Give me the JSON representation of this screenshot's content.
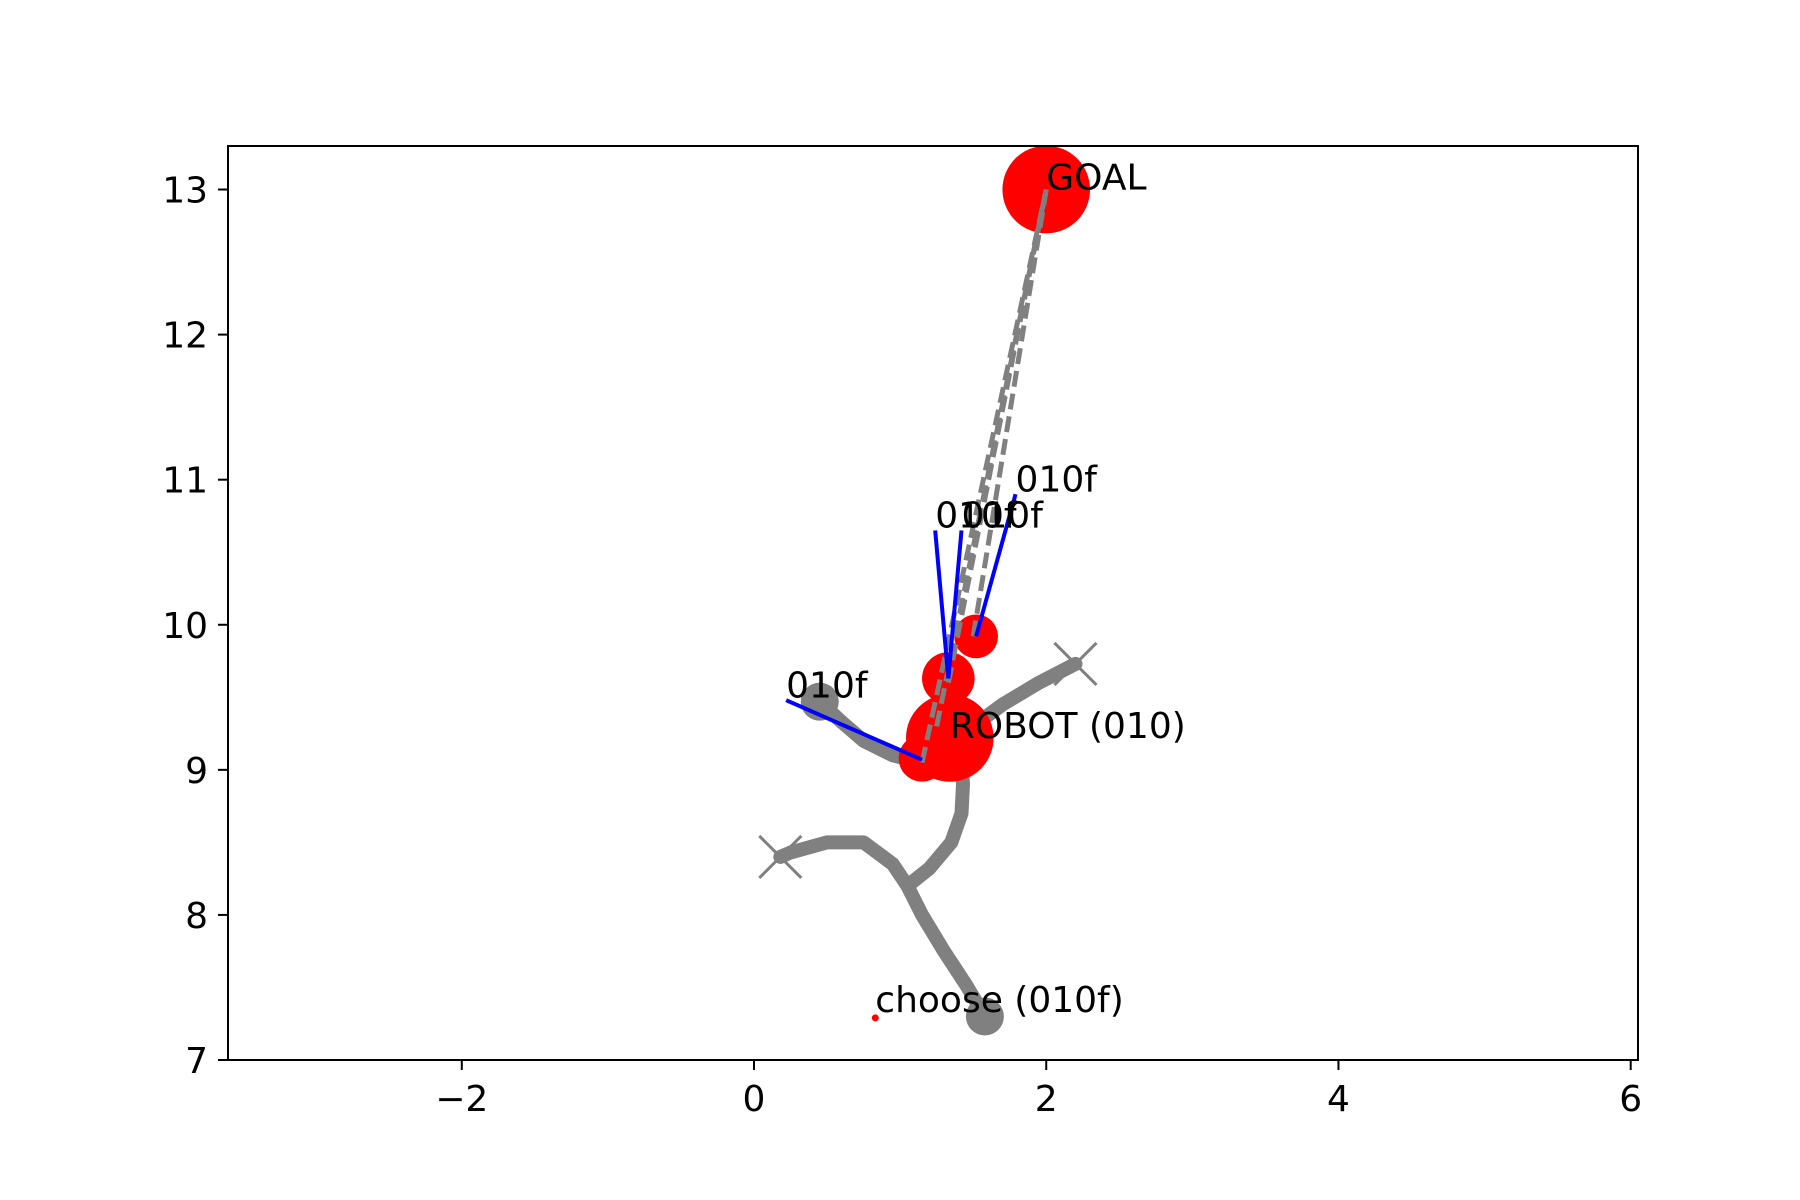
{
  "chart_data": {
    "type": "scatter",
    "xlim": [
      -3.6,
      6.05
    ],
    "ylim": [
      7.0,
      13.3
    ],
    "x_ticks": [
      -2,
      0,
      2,
      4,
      6
    ],
    "y_ticks": [
      7,
      8,
      9,
      10,
      11,
      12,
      13
    ],
    "x_tick_labels": [
      "−2",
      "0",
      "2",
      "4",
      "6"
    ],
    "y_tick_labels": [
      "7",
      "8",
      "9",
      "10",
      "11",
      "12",
      "13"
    ],
    "grid": false,
    "colors": {
      "path": "#808080",
      "node": "#ff0000",
      "direction": "#0000ff",
      "axis": "#000000"
    },
    "paths": [
      {
        "points": [
          [
            1.58,
            7.3
          ],
          [
            1.45,
            7.52
          ],
          [
            1.3,
            7.75
          ],
          [
            1.15,
            8.0
          ],
          [
            1.05,
            8.2
          ],
          [
            0.95,
            8.35
          ],
          [
            0.75,
            8.5
          ],
          [
            0.5,
            8.5
          ],
          [
            0.25,
            8.43
          ],
          [
            0.18,
            8.4
          ]
        ]
      },
      {
        "points": [
          [
            1.05,
            8.2
          ],
          [
            1.2,
            8.32
          ],
          [
            1.35,
            8.5
          ],
          [
            1.42,
            8.7
          ],
          [
            1.43,
            8.9
          ],
          [
            1.42,
            9.05
          ],
          [
            1.35,
            9.2
          ]
        ]
      },
      {
        "points": [
          [
            1.35,
            9.2
          ],
          [
            1.5,
            9.3
          ],
          [
            1.7,
            9.45
          ],
          [
            1.95,
            9.6
          ],
          [
            2.2,
            9.73
          ]
        ]
      },
      {
        "points": [
          [
            1.15,
            9.05
          ],
          [
            0.95,
            9.1
          ],
          [
            0.75,
            9.2
          ],
          [
            0.6,
            9.33
          ],
          [
            0.45,
            9.47
          ]
        ]
      }
    ],
    "dead_ends": [
      [
        0.18,
        8.4
      ],
      [
        2.2,
        9.73
      ]
    ],
    "round_ends": [
      [
        1.58,
        7.3
      ],
      [
        0.45,
        9.47
      ]
    ],
    "dashed_lines": [
      [
        [
          1.15,
          9.05
        ],
        [
          2.0,
          13.0
        ]
      ],
      [
        [
          1.33,
          9.6
        ],
        [
          2.0,
          13.0
        ]
      ],
      [
        [
          1.5,
          9.92
        ],
        [
          2.0,
          13.0
        ]
      ],
      [
        [
          1.25,
          9.3
        ],
        [
          2.0,
          13.0
        ]
      ]
    ],
    "nodes": [
      {
        "x": 2.0,
        "y": 13.0,
        "r": 0.3
      },
      {
        "x": 1.34,
        "y": 9.22,
        "r": 0.3
      },
      {
        "x": 1.15,
        "y": 9.08,
        "r": 0.16
      },
      {
        "x": 1.33,
        "y": 9.63,
        "r": 0.18
      },
      {
        "x": 1.52,
        "y": 9.92,
        "r": 0.15
      }
    ],
    "directions": [
      {
        "from": [
          1.15,
          9.07
        ],
        "to": [
          0.22,
          9.48
        ]
      },
      {
        "from": [
          1.33,
          9.63
        ],
        "to": [
          1.24,
          10.65
        ]
      },
      {
        "from": [
          1.33,
          9.63
        ],
        "to": [
          1.42,
          10.65
        ]
      },
      {
        "from": [
          1.52,
          9.92
        ],
        "to": [
          1.79,
          10.9
        ]
      }
    ],
    "labels": [
      {
        "text": "GOAL",
        "x": 2.0,
        "y": 13.0
      },
      {
        "text": "ROBOT (010)",
        "x": 1.34,
        "y": 9.22
      },
      {
        "text": "010f",
        "x": 0.22,
        "y": 9.5
      },
      {
        "text": "010f",
        "x": 1.24,
        "y": 10.67
      },
      {
        "text": "010f",
        "x": 1.42,
        "y": 10.67
      },
      {
        "text": "010f",
        "x": 1.79,
        "y": 10.92
      },
      {
        "text": "choose (010f)",
        "x": 0.83,
        "y": 7.33
      }
    ],
    "small_marker": {
      "x": 0.83,
      "y": 7.29
    }
  }
}
